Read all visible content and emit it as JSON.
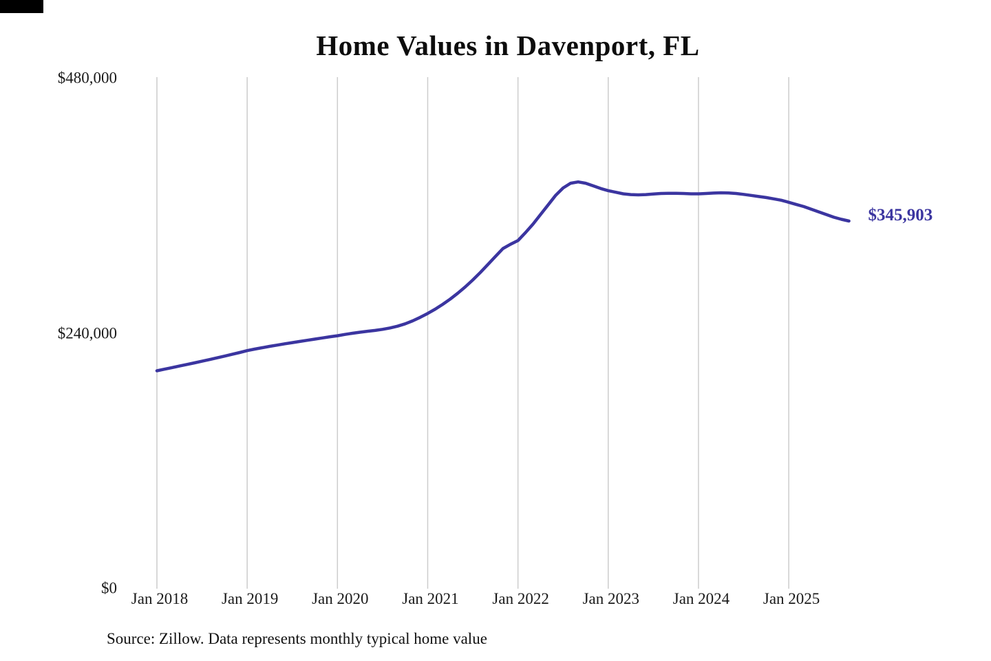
{
  "chart_data": {
    "type": "line",
    "title": "Home Values in Davenport, FL",
    "source_note": "Source: Zillow. Data represents monthly typical home value",
    "xlabel": "",
    "ylabel": "",
    "ylim": [
      0,
      480000
    ],
    "grid": "vertical",
    "legend": "none",
    "last_value_label": "$345,903",
    "colors": {
      "line": "#3b35a0",
      "grid": "#cccccc",
      "text": "#1a1a1a"
    },
    "yticks": [
      {
        "value": 0,
        "label": "$0"
      },
      {
        "value": 240000,
        "label": "$240,000"
      },
      {
        "value": 480000,
        "label": "$480,000"
      }
    ],
    "xticks": [
      "Jan 2018",
      "Jan 2019",
      "Jan 2020",
      "Jan 2021",
      "Jan 2022",
      "Jan 2023",
      "Jan 2024",
      "Jan 2025"
    ],
    "series": [
      {
        "name": "Monthly typical home value",
        "x_start": "2018-01",
        "x_interval": "month",
        "dates": [
          "2018-01",
          "2018-02",
          "2018-03",
          "2018-04",
          "2018-05",
          "2018-06",
          "2018-07",
          "2018-08",
          "2018-09",
          "2018-10",
          "2018-11",
          "2018-12",
          "2019-01",
          "2019-02",
          "2019-03",
          "2019-04",
          "2019-05",
          "2019-06",
          "2019-07",
          "2019-08",
          "2019-09",
          "2019-10",
          "2019-11",
          "2019-12",
          "2020-01",
          "2020-02",
          "2020-03",
          "2020-04",
          "2020-05",
          "2020-06",
          "2020-07",
          "2020-08",
          "2020-09",
          "2020-10",
          "2020-11",
          "2020-12",
          "2021-01",
          "2021-02",
          "2021-03",
          "2021-04",
          "2021-05",
          "2021-06",
          "2021-07",
          "2021-08",
          "2021-09",
          "2021-10",
          "2021-11",
          "2021-12",
          "2022-01",
          "2022-02",
          "2022-03",
          "2022-04",
          "2022-05",
          "2022-06",
          "2022-07",
          "2022-08",
          "2022-09",
          "2022-10",
          "2022-11",
          "2022-12",
          "2023-01",
          "2023-02",
          "2023-03",
          "2023-04",
          "2023-05",
          "2023-06",
          "2023-07",
          "2023-08",
          "2023-09",
          "2023-10",
          "2023-11",
          "2023-12",
          "2024-01",
          "2024-02",
          "2024-03",
          "2024-04",
          "2024-05",
          "2024-06",
          "2024-07",
          "2024-08",
          "2024-09",
          "2024-10",
          "2024-11",
          "2024-12",
          "2025-01",
          "2025-02",
          "2025-03",
          "2025-04",
          "2025-05",
          "2025-06",
          "2025-07",
          "2025-08",
          "2025-09"
        ],
        "values": [
          205000,
          206500,
          208000,
          209500,
          211000,
          212500,
          214000,
          215600,
          217200,
          218800,
          220500,
          222200,
          224000,
          225400,
          226700,
          228000,
          229200,
          230400,
          231500,
          232600,
          233700,
          234800,
          235900,
          237000,
          238000,
          239200,
          240300,
          241300,
          242200,
          243000,
          244000,
          245300,
          247000,
          249200,
          252000,
          255300,
          259000,
          263000,
          267500,
          272500,
          278000,
          284000,
          290500,
          297500,
          305000,
          312500,
          320000,
          324000,
          327500,
          335000,
          343000,
          352000,
          361000,
          370000,
          377000,
          381500,
          382700,
          381500,
          379000,
          376500,
          374500,
          373000,
          371500,
          370800,
          370500,
          370800,
          371300,
          371800,
          372000,
          372000,
          371800,
          371500,
          371500,
          371800,
          372200,
          372500,
          372300,
          371800,
          371000,
          370000,
          369000,
          368000,
          366800,
          365500,
          363500,
          361500,
          359500,
          357000,
          354500,
          352000,
          349500,
          347500,
          345903
        ]
      }
    ]
  }
}
